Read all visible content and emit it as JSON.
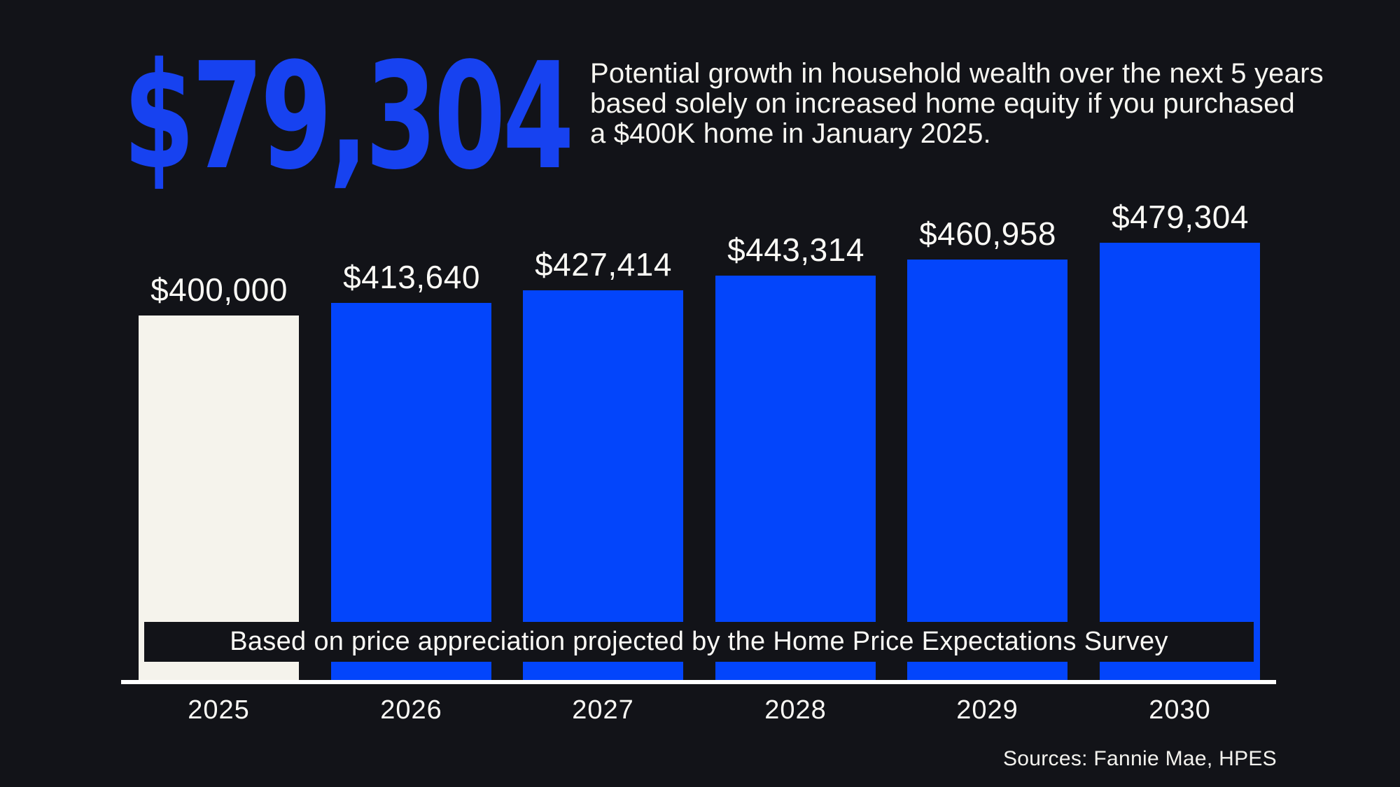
{
  "headline": {
    "amount": "$79,304",
    "description_lines": [
      "Potential growth in household wealth over the next 5 years",
      "based solely on increased home equity if you purchased",
      "a $400K home in January 2025."
    ]
  },
  "chart_data": {
    "type": "bar",
    "title": "",
    "categories": [
      "2025",
      "2026",
      "2027",
      "2028",
      "2029",
      "2030"
    ],
    "values": [
      400000,
      413640,
      427414,
      443314,
      460958,
      479304
    ],
    "value_labels": [
      "$400,000",
      "$413,640",
      "$427,414",
      "$443,314",
      "$460,958",
      "$479,304"
    ],
    "annotation": "Based on price appreciation projected by the Home Price Expectations Survey",
    "legend": "none",
    "grid": "off",
    "baseline": 0,
    "highlighted_category": "2025"
  },
  "footer": {
    "sources": "Sources: Fannie Mae, HPES"
  },
  "colors": {
    "background": "#121318",
    "bar_blue": "#0345FB",
    "bar_cream_first": "#F5F3EC",
    "headline_blue": "#1742F0",
    "text_white": "#FAF9F5",
    "axis_white": "#FFFFFF"
  }
}
